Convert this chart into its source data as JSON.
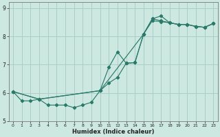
{
  "xlabel": "Humidex (Indice chaleur)",
  "bg_color": "#cce8e0",
  "grid_color": "#aacfc8",
  "line_color": "#2a7a6a",
  "xlim": [
    -0.5,
    23.5
  ],
  "ylim": [
    5.0,
    9.2
  ],
  "xticks": [
    0,
    1,
    2,
    3,
    4,
    5,
    6,
    7,
    8,
    9,
    10,
    11,
    12,
    13,
    14,
    15,
    16,
    17,
    18,
    19,
    20,
    21,
    22,
    23
  ],
  "yticks": [
    5,
    6,
    7,
    8,
    9
  ],
  "series1_x": [
    0,
    1,
    2,
    3,
    4,
    5,
    6,
    7,
    8,
    9,
    10,
    11,
    12,
    13,
    14,
    15,
    16,
    17,
    18,
    19,
    20,
    21,
    22,
    23
  ],
  "series1_y": [
    6.05,
    5.72,
    5.72,
    5.78,
    5.57,
    5.57,
    5.57,
    5.48,
    5.57,
    5.67,
    6.08,
    6.35,
    6.55,
    7.05,
    7.07,
    8.08,
    8.55,
    8.52,
    8.48,
    8.42,
    8.42,
    8.35,
    8.32,
    8.45
  ],
  "series2_x": [
    0,
    3,
    10,
    11,
    12,
    13,
    14,
    15,
    16,
    17,
    18,
    19,
    20,
    21,
    22,
    23
  ],
  "series2_y": [
    6.05,
    5.78,
    6.08,
    6.9,
    7.45,
    7.05,
    7.07,
    8.08,
    8.62,
    8.55,
    8.48,
    8.42,
    8.42,
    8.35,
    8.32,
    8.45
  ],
  "series3_x": [
    0,
    3,
    10,
    15,
    16,
    17,
    18,
    19,
    20,
    21,
    22,
    23
  ],
  "series3_y": [
    6.05,
    5.78,
    6.08,
    8.08,
    8.62,
    8.72,
    8.48,
    8.42,
    8.42,
    8.35,
    8.32,
    8.45
  ]
}
